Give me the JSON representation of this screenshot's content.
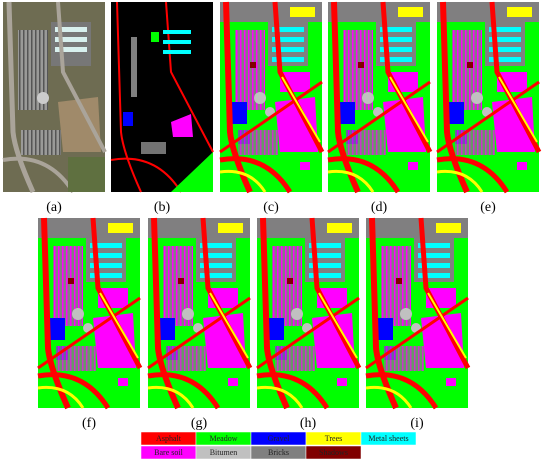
{
  "panels": [
    {
      "label": "(a)"
    },
    {
      "label": "(b)"
    },
    {
      "label": "(c)"
    },
    {
      "label": "(d)"
    },
    {
      "label": "(e)"
    },
    {
      "label": "(f)"
    },
    {
      "label": "(g)"
    },
    {
      "label": "(h)"
    },
    {
      "label": "(i)"
    }
  ],
  "legend": [
    {
      "name": "Asphalt",
      "color": "#ff0000"
    },
    {
      "name": "Meadow",
      "color": "#00ff00"
    },
    {
      "name": "Gravel",
      "color": "#0000ff"
    },
    {
      "name": "Trees",
      "color": "#ffff00"
    },
    {
      "name": "Metal sheets",
      "color": "#00ffff"
    },
    {
      "name": "Bare soil",
      "color": "#ff00ff"
    },
    {
      "name": "Bitumen",
      "color": "#c0c0c0"
    },
    {
      "name": "Bricks",
      "color": "#808080"
    },
    {
      "name": "Shadows",
      "color": "#800000"
    }
  ]
}
